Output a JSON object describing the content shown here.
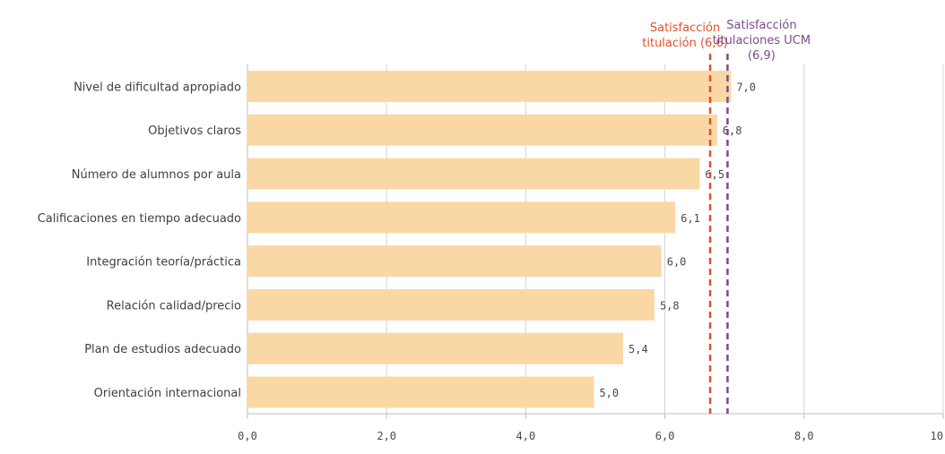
{
  "chart_data": {
    "type": "bar",
    "orientation": "horizontal",
    "categories": [
      "Nivel de dificultad apropiado",
      "Objetivos claros",
      "Número de alumnos por aula",
      "Calificaciones en tiempo adecuado",
      "Integración teoría/práctica",
      "Relación calidad/precio",
      "Plan de estudios adecuado",
      "Orientación internacional"
    ],
    "values": [
      6.95,
      6.75,
      6.5,
      6.15,
      5.95,
      5.85,
      5.4,
      4.98
    ],
    "value_labels": [
      "7,0",
      "6,8",
      "6,5",
      "6,1",
      "6,0",
      "5,8",
      "5,4",
      "5,0"
    ],
    "title": "",
    "xlabel": "",
    "ylabel": "",
    "xlim": [
      0,
      10
    ],
    "x_ticks": [
      0,
      2,
      4,
      6,
      8,
      10
    ],
    "x_tick_labels": [
      "0,0",
      "2,0",
      "4,0",
      "6,0",
      "8,0",
      "10,0"
    ],
    "grid": true,
    "legend": "none",
    "bar_color": "#fad8a6",
    "reference_lines": [
      {
        "value": 6.65,
        "label_lines": [
          "Satisfacción",
          "titulación (6,6)"
        ],
        "color": "#e0502a",
        "style": "dashed"
      },
      {
        "value": 6.9,
        "label_lines": [
          "Satisfacción",
          "titulaciones UCM",
          "(6,9)"
        ],
        "color": "#7b4a8a",
        "style": "dashed"
      }
    ],
    "colors": {
      "grid": "#d4d4d4",
      "axis": "#bdbdbd",
      "text": "#3f3f3f"
    }
  }
}
